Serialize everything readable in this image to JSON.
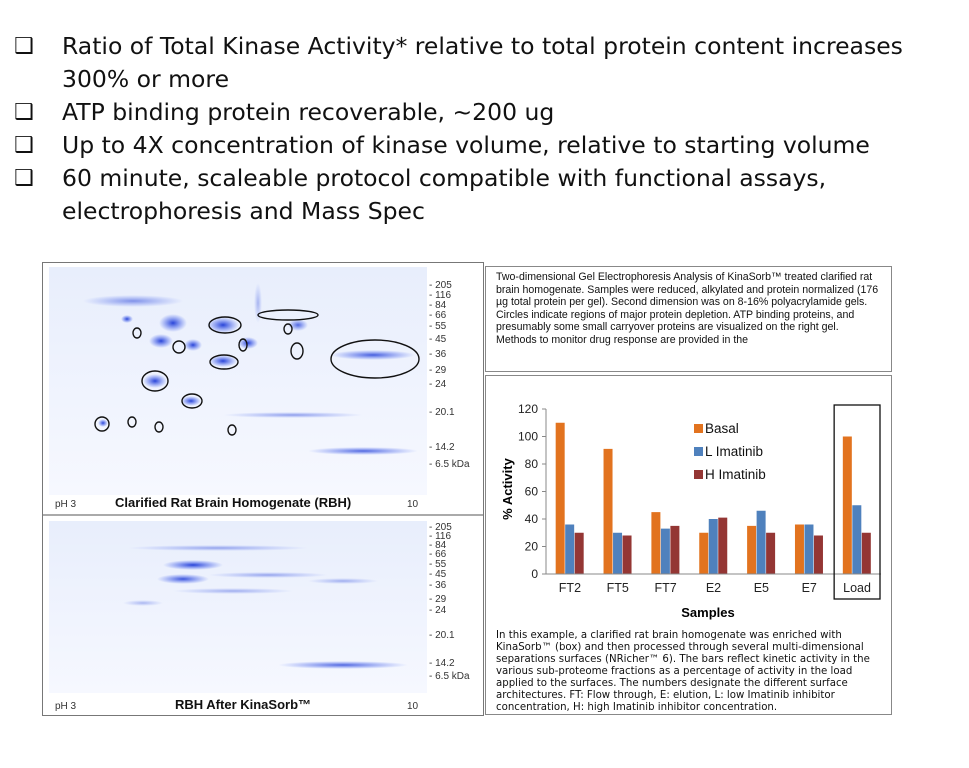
{
  "bullets": [
    {
      "symbol": "❑",
      "text": "Ratio of Total Kinase Activity* relative to total protein content increases 300% or more"
    },
    {
      "symbol": "❑",
      "text": "ATP binding protein recoverable, ~200 ug"
    },
    {
      "symbol": "❑",
      "text": "Up to 4X concentration of kinase volume, relative to starting volume"
    },
    {
      "symbol": "❑",
      "text": "60 minute, scaleable protocol compatible with functional assays, electrophoresis and Mass Spec"
    }
  ],
  "gels": {
    "top": {
      "title": "Clarified Rat Brain Homogenate (RBH)",
      "ph_left": "pH 3",
      "ph_right": "10",
      "markers": [
        "- 205",
        "- 116",
        "- 84",
        "- 66",
        "- 55",
        "- 45",
        "- 36",
        "- 29",
        "- 24",
        "- 20.1",
        "- 14.2",
        "- 6.5 kDa"
      ]
    },
    "bottom": {
      "title": "RBH After KinaSorb™",
      "ph_left": "pH 3",
      "ph_right": "10",
      "markers": [
        "- 205",
        "- 116",
        "- 84",
        "- 66",
        "- 55",
        "- 45",
        "- 36",
        "- 29",
        "- 24",
        "- 20.1",
        "- 14.2",
        "- 6.5 kDa"
      ]
    }
  },
  "top_caption": "Two-dimensional Gel Electrophoresis Analysis of KinaSorb™ treated clarified rat brain homogenate. Samples were reduced, alkylated and protein normalized (176 µg total protein per gel). Second dimension was on 8-16% polyacrylamide gels. Circles indicate regions of major protein depletion. ATP binding proteins, and presumably some small carryover proteins are visualized on the right gel. Methods to monitor drug response are provided in the",
  "bottom_caption": "In this example, a clarified rat brain homogenate was enriched with KinaSorb™ (box) and then processed through several multi-dimensional separations surfaces (NRicher™ 6). The bars reflect kinetic activity in the various sub-proteome fractions as a percentage of activity in the load applied to the surfaces. The numbers designate the different surface architectures. FT: Flow through, E: elution, L: low Imatinib inhibitor concentration, H: high Imatinib inhibitor concentration.",
  "chart_data": {
    "type": "bar",
    "categories": [
      "FT2",
      "FT5",
      "FT7",
      "E2",
      "E5",
      "E7",
      "Load"
    ],
    "series": [
      {
        "name": "Basal",
        "color": "#e2731f",
        "values": [
          110,
          91,
          45,
          30,
          35,
          36,
          100
        ]
      },
      {
        "name": "L Imatinib",
        "color": "#4f81bd",
        "values": [
          36,
          30,
          33,
          40,
          46,
          36,
          50
        ]
      },
      {
        "name": "H Imatinib",
        "color": "#943634",
        "values": [
          30,
          28,
          35,
          41,
          30,
          28,
          30
        ]
      }
    ],
    "ylim": [
      0,
      120
    ],
    "yticks": [
      0,
      20,
      40,
      60,
      80,
      100,
      120
    ],
    "xlabel": "Samples",
    "ylabel": "% Activity",
    "legend": "top-right",
    "highlight_category": "Load"
  }
}
